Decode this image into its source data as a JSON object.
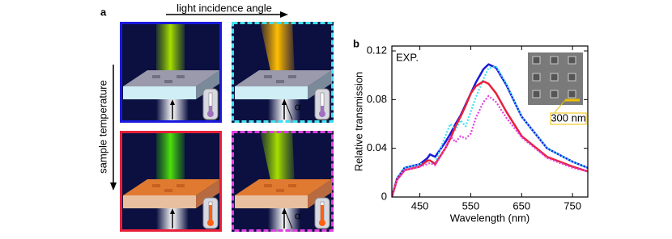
{
  "panel_a": {
    "label": "a",
    "top_arrow": "light incidence angle",
    "side_arrow": "sample temperature",
    "angle_labels": [
      "α",
      "α"
    ]
  },
  "panel_b": {
    "label": "b"
  },
  "chart_data": {
    "type": "line",
    "xlabel": "Wavelength (nm)",
    "ylabel": "Relative transmission",
    "annotation": "EXP.",
    "inset_scale": "300 nm",
    "x": [
      395,
      405,
      420,
      450,
      465,
      470,
      480,
      500,
      510,
      520,
      530,
      540,
      550,
      560,
      575,
      585,
      600,
      620,
      650,
      700,
      750,
      780
    ],
    "series": [
      {
        "color": "#1a1adc",
        "style": "solid",
        "values": [
          0,
          0.015,
          0.024,
          0.027,
          0.032,
          0.035,
          0.033,
          0.045,
          0.052,
          0.06,
          0.067,
          0.076,
          0.085,
          0.094,
          0.105,
          0.109,
          0.106,
          0.092,
          0.066,
          0.04,
          0.029,
          0.024
        ]
      },
      {
        "color": "#40e0f0",
        "style": "dotted",
        "values": [
          0,
          0.015,
          0.024,
          0.027,
          0.029,
          0.03,
          0.028,
          0.05,
          0.06,
          0.055,
          0.063,
          0.058,
          0.07,
          0.082,
          0.097,
          0.106,
          0.107,
          0.093,
          0.066,
          0.04,
          0.029,
          0.024
        ]
      },
      {
        "color": "#e8203a",
        "style": "solid",
        "values": [
          0,
          0.014,
          0.022,
          0.025,
          0.03,
          0.03,
          0.027,
          0.04,
          0.048,
          0.058,
          0.066,
          0.075,
          0.085,
          0.091,
          0.095,
          0.093,
          0.085,
          0.07,
          0.05,
          0.033,
          0.025,
          0.021
        ]
      },
      {
        "color": "#e040e0",
        "style": "dotted",
        "values": [
          0,
          0.014,
          0.022,
          0.025,
          0.027,
          0.028,
          0.026,
          0.04,
          0.05,
          0.045,
          0.05,
          0.048,
          0.052,
          0.065,
          0.078,
          0.083,
          0.078,
          0.065,
          0.049,
          0.032,
          0.024,
          0.021
        ]
      }
    ],
    "xlim": [
      395,
      780
    ],
    "ylim": [
      0,
      0.124
    ],
    "xticks": [
      450,
      550,
      650,
      750
    ],
    "yticks": [
      0,
      0.04,
      0.08,
      0.12
    ]
  }
}
